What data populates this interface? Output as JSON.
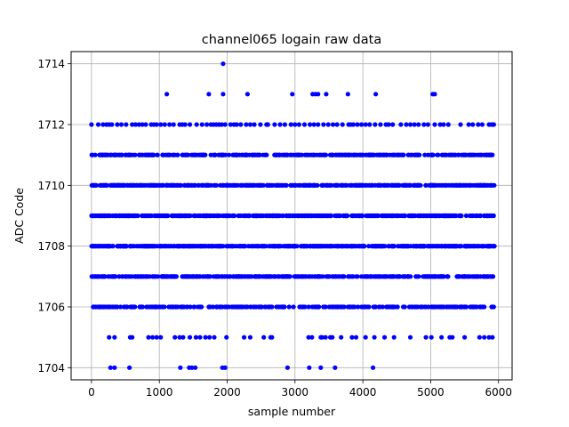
{
  "chart_data": {
    "type": "scatter",
    "title": "channel065 logain raw data",
    "xlabel": "sample number",
    "ylabel": "ADC Code",
    "xlim": [
      -300,
      6200
    ],
    "ylim": [
      1703.6,
      1714.4
    ],
    "xticks": [
      0,
      1000,
      2000,
      3000,
      4000,
      5000,
      6000
    ],
    "yticks": [
      1704,
      1706,
      1708,
      1710,
      1712,
      1714
    ],
    "grid": true,
    "series": [
      {
        "color": "#0000ff",
        "marker": "circle",
        "x_range": [
          0,
          5940
        ],
        "levels": [
          {
            "y": 1704,
            "x": [
              280,
              340,
              560,
              1310,
              1440,
              1480,
              1530,
              1930,
              1970,
              2890,
              3210,
              3380,
              3590,
              4150
            ]
          },
          {
            "y": 1705,
            "x": [
              260,
              340,
              570,
              600,
              840,
              900,
              960,
              1020,
              1230,
              1300,
              1350,
              1450,
              1540,
              1600,
              1680,
              1740,
              1810,
              1990,
              2250,
              2340,
              2540,
              2640,
              2660,
              3200,
              3250,
              3380,
              3400,
              3450,
              3520,
              3550,
              3680,
              3840,
              3900,
              4040,
              4170,
              4320,
              4460,
              4700,
              4930,
              5010,
              5160,
              5280,
              5320,
              5500,
              5720,
              5790,
              5860,
              5910
            ]
          },
          {
            "y": 1706,
            "x_from": 0,
            "x_to": 5930,
            "count": 300,
            "seed": 6
          },
          {
            "y": 1707,
            "x_from": 0,
            "x_to": 5940,
            "count": 420,
            "seed": 7
          },
          {
            "y": 1708,
            "x_from": 0,
            "x_to": 5940,
            "count": 520,
            "seed": 8
          },
          {
            "y": 1709,
            "x_from": 0,
            "x_to": 5940,
            "count": 520,
            "seed": 9
          },
          {
            "y": 1710,
            "x_from": 0,
            "x_to": 5940,
            "count": 500,
            "seed": 10
          },
          {
            "y": 1711,
            "x_from": 0,
            "x_to": 5930,
            "count": 330,
            "seed": 11
          },
          {
            "y": 1712,
            "x": [
              0,
              100,
              170,
              220,
              260,
              300,
              380,
              440,
              510,
              600,
              650,
              700,
              750,
              800,
              880,
              920,
              960,
              1020,
              1080,
              1150,
              1210,
              1300,
              1340,
              1380,
              1450,
              1550,
              1630,
              1700,
              1760,
              1800,
              1840,
              1880,
              1920,
              1970,
              2050,
              2100,
              2140,
              2200,
              2280,
              2340,
              2400,
              2490,
              2580,
              2600,
              2700,
              2780,
              2850,
              2940,
              3000,
              3060,
              3140,
              3220,
              3280,
              3340,
              3420,
              3490,
              3560,
              3620,
              3700,
              3790,
              3820,
              3860,
              3920,
              3980,
              4040,
              4100,
              4180,
              4260,
              4340,
              4380,
              4440,
              4560,
              4640,
              4700,
              4760,
              4820,
              4900,
              4960,
              5060,
              5140,
              5190,
              5260,
              5440,
              5560,
              5620,
              5700,
              5760,
              5860,
              5900,
              5930
            ]
          },
          {
            "y": 1713,
            "x": [
              1110,
              1730,
              1940,
              2300,
              2960,
              3260,
              3300,
              3340,
              3460,
              3780,
              4190,
              5030,
              5060
            ]
          },
          {
            "y": 1714,
            "x": [
              1940
            ]
          }
        ]
      }
    ]
  }
}
